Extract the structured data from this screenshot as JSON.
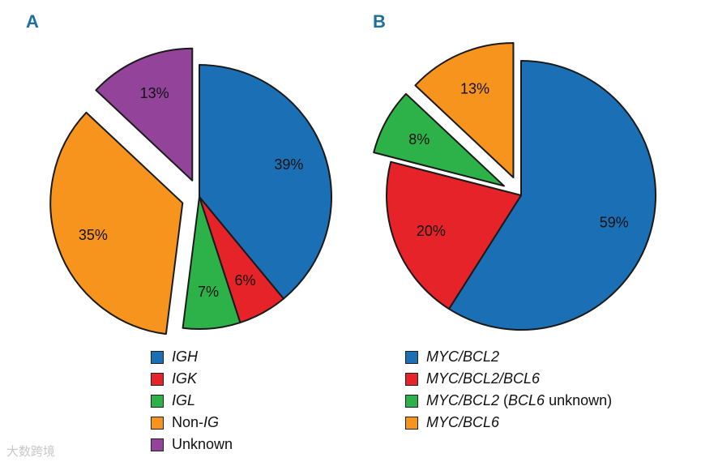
{
  "panels": {
    "a_label": "A",
    "b_label": "B"
  },
  "chart_data": [
    {
      "type": "pie",
      "title": "A",
      "slices": [
        {
          "label": "IGH",
          "value": 39,
          "display": "39%",
          "color": "#1a6fb5",
          "exploded": false
        },
        {
          "label": "IGK",
          "value": 6,
          "display": "6%",
          "color": "#e52329",
          "exploded": false
        },
        {
          "label": "IGL",
          "value": 7,
          "display": "7%",
          "color": "#2db24a",
          "exploded": false
        },
        {
          "label": "Non-IG",
          "value": 35,
          "display": "35%",
          "color": "#f7941d",
          "exploded": true
        },
        {
          "label": "Unknown",
          "value": 13,
          "display": "13%",
          "color": "#93449a",
          "exploded": true
        }
      ],
      "legend": [
        {
          "text": "IGH",
          "italic": "IGH",
          "color": "#1a6fb5"
        },
        {
          "text": "IGK",
          "italic": "IGK",
          "color": "#e52329"
        },
        {
          "text": "IGL",
          "italic": "IGL",
          "color": "#2db24a"
        },
        {
          "text": "Non-IG",
          "prefix": "Non-",
          "italic": "IG",
          "color": "#f7941d"
        },
        {
          "text": "Unknown",
          "plain": "Unknown",
          "color": "#93449a"
        }
      ]
    },
    {
      "type": "pie",
      "title": "B",
      "slices": [
        {
          "label": "MYC/BCL2",
          "value": 59,
          "display": "59%",
          "color": "#1a6fb5",
          "exploded": false
        },
        {
          "label": "MYC/BCL2/BCL6",
          "value": 20,
          "display": "20%",
          "color": "#e52329",
          "exploded": false
        },
        {
          "label": "MYC/BCL2 (BCL6 unknown)",
          "value": 8,
          "display": "8%",
          "color": "#2db24a",
          "exploded": true
        },
        {
          "label": "MYC/BCL6",
          "value": 13,
          "display": "13%",
          "color": "#f7941d",
          "exploded": true
        }
      ],
      "legend": [
        {
          "text": "MYC/BCL2",
          "italic": "MYC/BCL2",
          "color": "#1a6fb5"
        },
        {
          "text": "MYC/BCL2/BCL6",
          "italic": "MYC/BCL2/BCL6",
          "color": "#e52329"
        },
        {
          "text": "MYC/BCL2 (BCL6 unknown)",
          "italic": "MYC/BCL2",
          "mid": " (",
          "italic2": "BCL6",
          "suffix": " unknown)",
          "color": "#2db24a"
        },
        {
          "text": "MYC/BCL6",
          "italic": "MYC/BCL6",
          "color": "#f7941d"
        }
      ]
    }
  ],
  "watermark": "大数跨境"
}
